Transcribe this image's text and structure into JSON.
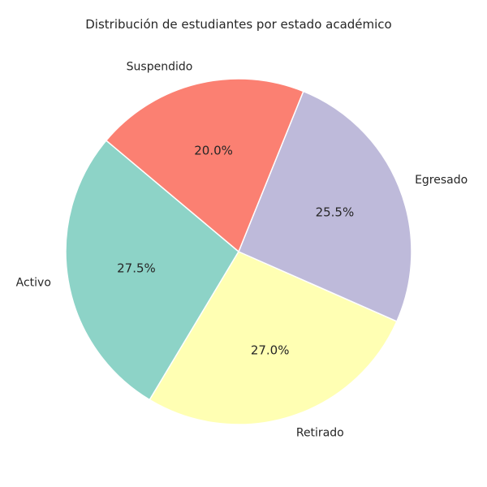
{
  "chart_data": {
    "type": "pie",
    "title": "Distribución de estudiantes por estado académico",
    "start_angle_deg": 140,
    "direction": "counterclockwise",
    "slices": [
      {
        "label": "Activo",
        "value": 27.5,
        "pct_text": "27.5%",
        "color": "#8dd3c7"
      },
      {
        "label": "Retirado",
        "value": 27.0,
        "pct_text": "27.0%",
        "color": "#ffffb3"
      },
      {
        "label": "Egresado",
        "value": 25.5,
        "pct_text": "25.5%",
        "color": "#bebada"
      },
      {
        "label": "Suspendido",
        "value": 20.0,
        "pct_text": "20.0%",
        "color": "#fb8072"
      }
    ],
    "edge_color": "#ffffff"
  }
}
